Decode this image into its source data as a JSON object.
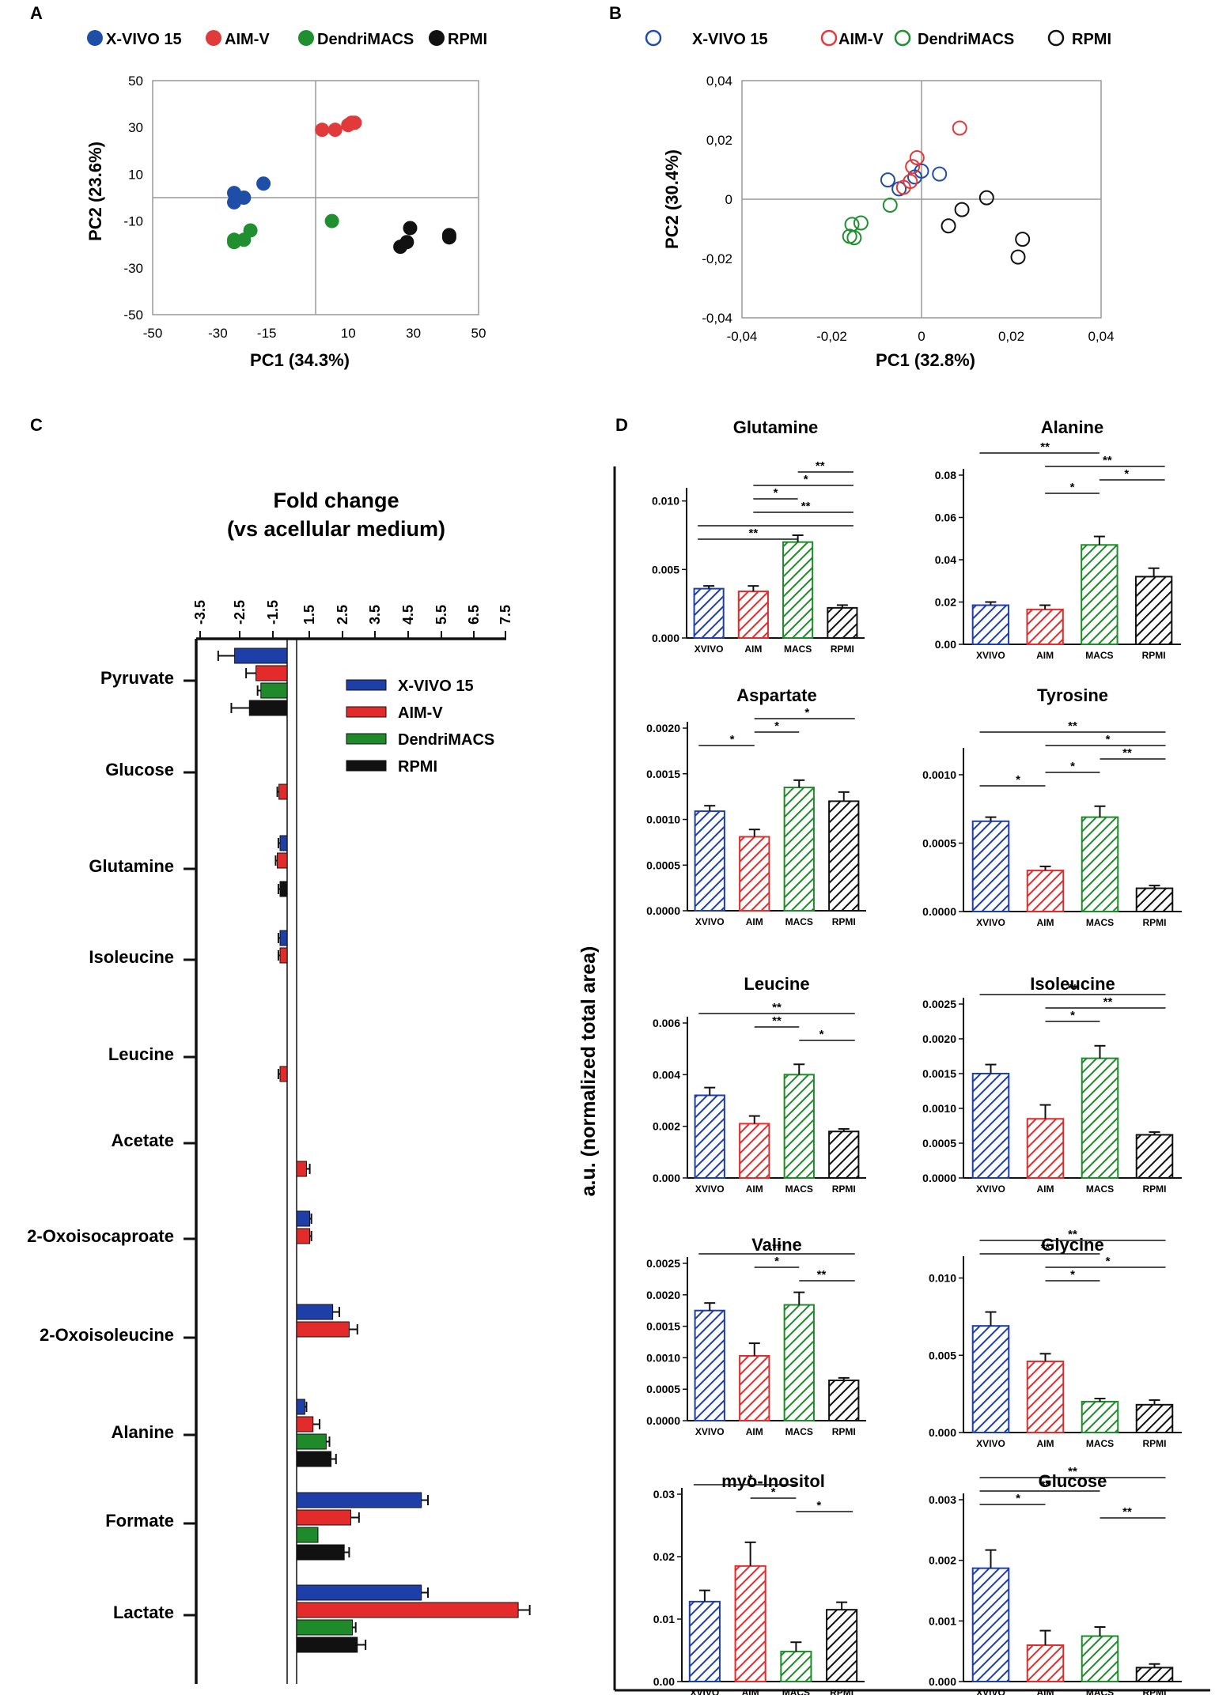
{
  "colors": {
    "xvivo": "#1f3fa8",
    "aim": "#e32b2b",
    "macs": "#1e8a2a",
    "rpmi": "#111111",
    "pca_xvivo": "#1f4ea8",
    "pca_aim": "#e03a3a",
    "pca_macs": "#1f8f2f"
  },
  "panels": {
    "a": "A",
    "b": "B",
    "c": "C",
    "d": "D"
  },
  "chart_data": [
    {
      "panel": "A",
      "type": "scatter",
      "legend": [
        "X-VIVO 15",
        "AIM-V",
        "DendriMACS",
        "RPMI"
      ],
      "xlabel": "PC1 (34.3%)",
      "ylabel": "PC2 (23.6%)",
      "xlim": [
        -50,
        50
      ],
      "ylim": [
        -50,
        50
      ],
      "xticks": [
        -50,
        -30,
        -15,
        10,
        30,
        50
      ],
      "xtick_labels": [
        "-50",
        "-30",
        "-15",
        "10",
        "30",
        "50"
      ],
      "yticks": [
        50,
        30,
        10,
        -10,
        -30,
        -50
      ],
      "ytick_labels": [
        "50",
        "30",
        "10",
        "-10",
        "-30",
        "-50"
      ],
      "series": [
        {
          "name": "X-VIVO 15",
          "points": [
            [
              -24,
              0
            ],
            [
              -25,
              -2
            ],
            [
              -22,
              0
            ],
            [
              -25,
              2
            ],
            [
              -16,
              6
            ]
          ]
        },
        {
          "name": "AIM-V",
          "points": [
            [
              2,
              29
            ],
            [
              6,
              29
            ],
            [
              10,
              31
            ],
            [
              11,
              32
            ],
            [
              12,
              32
            ]
          ]
        },
        {
          "name": "DendriMACS",
          "points": [
            [
              -25,
              -18
            ],
            [
              -25,
              -19
            ],
            [
              -22,
              -18
            ],
            [
              -20,
              -14
            ],
            [
              5,
              -10
            ]
          ]
        },
        {
          "name": "RPMI",
          "points": [
            [
              26,
              -21
            ],
            [
              28,
              -19
            ],
            [
              29,
              -13
            ],
            [
              41,
              -16
            ],
            [
              41,
              -17
            ]
          ]
        }
      ]
    },
    {
      "panel": "B",
      "type": "scatter",
      "legend": [
        "X-VIVO 15",
        "AIM-V",
        "DendriMACS",
        "RPMI"
      ],
      "xlabel": "PC1 (32.8%)",
      "ylabel": "PC2 (30.4%)",
      "xlim": [
        -0.04,
        0.04
      ],
      "ylim": [
        -0.04,
        0.04
      ],
      "xtick_values": [
        -0.04,
        -0.02,
        0,
        0.02,
        0.04
      ],
      "xtick_labels": [
        "-0,04",
        "-0,02",
        "0",
        "0,02",
        "0,04"
      ],
      "ytick_values": [
        0.04,
        0.02,
        0,
        -0.02,
        -0.04
      ],
      "ytick_labels": [
        "0,04",
        "0,02",
        "0",
        "-0,02",
        "-0,04"
      ],
      "series": [
        {
          "name": "X-VIVO 15",
          "points": [
            [
              -0.0075,
              0.0065
            ],
            [
              -0.005,
              0.0035
            ],
            [
              -0.0015,
              0.0075
            ],
            [
              0.0,
              0.0095
            ],
            [
              0.004,
              0.0085
            ]
          ]
        },
        {
          "name": "AIM-V",
          "points": [
            [
              -0.004,
              0.004
            ],
            [
              -0.0025,
              0.006
            ],
            [
              -0.002,
              0.011
            ],
            [
              -0.001,
              0.014
            ],
            [
              0.0085,
              0.024
            ]
          ]
        },
        {
          "name": "DendriMACS",
          "points": [
            [
              -0.0155,
              -0.0085
            ],
            [
              -0.016,
              -0.0125
            ],
            [
              -0.015,
              -0.013
            ],
            [
              -0.0135,
              -0.008
            ],
            [
              -0.007,
              -0.002
            ]
          ]
        },
        {
          "name": "RPMI",
          "points": [
            [
              0.006,
              -0.009
            ],
            [
              0.009,
              -0.0035
            ],
            [
              0.0145,
              0.0005
            ],
            [
              0.0215,
              -0.0195
            ],
            [
              0.0225,
              -0.0135
            ]
          ]
        }
      ]
    },
    {
      "panel": "C",
      "type": "bar",
      "orientation": "horizontal",
      "title": "Fold change",
      "subtitle": "(vs acellular medium)",
      "tick_labels": [
        "-3.5",
        "-2.5",
        "-1.5",
        "1.5",
        "2.5",
        "3.5",
        "4.5",
        "5.5",
        "6.5",
        "7.5"
      ],
      "legend": [
        "X-VIVO 15",
        "AIM-V",
        "DendriMACS",
        "RPMI"
      ],
      "categories": [
        "Pyruvate",
        "Glucose",
        "Glutamine",
        "Isoleucine",
        "Leucine",
        "Acetate",
        "2-Oxoisocaproate",
        "2-Oxoisoleucine",
        "Alanine",
        "Formate",
        "Lactate"
      ],
      "series": [
        {
          "name": "X-VIVO 15",
          "values": [
            -2.6,
            null,
            -1.2,
            -1.2,
            null,
            null,
            1.4,
            2.1,
            1.25,
            4.8,
            4.8
          ],
          "errors": [
            0.5,
            null,
            0.05,
            0.05,
            null,
            null,
            0.05,
            0.2,
            0.05,
            0.2,
            0.2
          ]
        },
        {
          "name": "AIM-V",
          "values": [
            -1.95,
            -1.25,
            -1.3,
            -1.2,
            -1.2,
            1.3,
            1.4,
            2.6,
            1.5,
            2.65,
            7.75
          ],
          "errors": [
            0.3,
            0.05,
            0.05,
            0.05,
            0.05,
            0.1,
            0.05,
            0.25,
            0.2,
            0.25,
            0.35
          ]
        },
        {
          "name": "DendriMACS",
          "values": [
            -1.8,
            null,
            null,
            null,
            null,
            null,
            null,
            null,
            1.9,
            1.65,
            2.7
          ],
          "errors": [
            0.1,
            null,
            null,
            null,
            null,
            null,
            null,
            null,
            0.1,
            null,
            0.1
          ]
        },
        {
          "name": "RPMI",
          "values": [
            -2.15,
            null,
            -1.2,
            null,
            null,
            null,
            null,
            null,
            2.05,
            2.45,
            2.85
          ],
          "errors": [
            0.55,
            null,
            0.05,
            null,
            null,
            null,
            null,
            null,
            0.15,
            0.15,
            0.25
          ]
        }
      ]
    },
    {
      "panel": "D",
      "type": "bar",
      "ylabel": "a.u. (normalized total area)",
      "categories": [
        "XVIVO",
        "AIM",
        "MACS",
        "RPMI"
      ],
      "subplots": [
        {
          "title": "Glutamine",
          "ymax": 0.0105,
          "ticks": [
            0.0,
            0.005,
            0.01
          ],
          "tick_labels": [
            "0.000",
            "0.005",
            "0.010"
          ],
          "values": [
            0.0036,
            0.0034,
            0.007,
            0.0022
          ],
          "errors": [
            0.0002,
            0.0004,
            0.0005,
            0.0002
          ],
          "sig": [
            {
              "a": 2,
              "b": 3,
              "label": "**"
            },
            {
              "a": 1,
              "b": 3,
              "label": "*"
            },
            {
              "a": 1,
              "b": 2,
              "label": "*"
            },
            {
              "a": 1,
              "b": 3,
              "label": "**"
            },
            {
              "a": 0,
              "b": 3,
              "label": ""
            },
            {
              "a": 0,
              "b": 2,
              "label": "**"
            }
          ]
        },
        {
          "title": "Alanine",
          "ymax": 0.08,
          "ticks": [
            0.0,
            0.02,
            0.04,
            0.06,
            0.08
          ],
          "tick_labels": [
            "0.00",
            "0.02",
            "0.04",
            "0.06",
            "0.08"
          ],
          "values": [
            0.0185,
            0.0165,
            0.047,
            0.032
          ],
          "errors": [
            0.0015,
            0.002,
            0.004,
            0.004
          ],
          "sig": [
            {
              "a": 0,
              "b": 2,
              "label": "**"
            },
            {
              "a": 1,
              "b": 3,
              "label": "**"
            },
            {
              "a": 2,
              "b": 3,
              "label": "*"
            },
            {
              "a": 1,
              "b": 2,
              "label": "*"
            }
          ]
        },
        {
          "title": "Aspartate",
          "ymax": 0.002,
          "ticks": [
            0.0,
            0.0005,
            0.001,
            0.0015,
            0.002
          ],
          "tick_labels": [
            "0.0000",
            "0.0005",
            "0.0010",
            "0.0015",
            "0.0020"
          ],
          "values": [
            0.00109,
            0.00081,
            0.00135,
            0.0012
          ],
          "errors": [
            6e-05,
            8e-05,
            8e-05,
            0.0001
          ],
          "sig": [
            {
              "a": 1,
              "b": 3,
              "label": "*"
            },
            {
              "a": 1,
              "b": 2,
              "label": "*"
            },
            {
              "a": 0,
              "b": 1,
              "label": "*"
            }
          ]
        },
        {
          "title": "Tyrosine",
          "ymax": 0.00115,
          "ticks": [
            0.0,
            0.0005,
            0.001
          ],
          "tick_labels": [
            "0.0000",
            "0.0005",
            "0.0010"
          ],
          "values": [
            0.00066,
            0.0003,
            0.00069,
            0.00017
          ],
          "errors": [
            3e-05,
            3e-05,
            8e-05,
            2e-05
          ],
          "sig": [
            {
              "a": 0,
              "b": 3,
              "label": "**"
            },
            {
              "a": 1,
              "b": 3,
              "label": "*"
            },
            {
              "a": 2,
              "b": 3,
              "label": "**"
            },
            {
              "a": 1,
              "b": 2,
              "label": "*"
            },
            {
              "a": 0,
              "b": 1,
              "label": "*"
            }
          ]
        },
        {
          "title": "Leucine",
          "ymax": 0.006,
          "ticks": [
            0.0,
            0.002,
            0.004,
            0.006
          ],
          "tick_labels": [
            "0.000",
            "0.002",
            "0.004",
            "0.006"
          ],
          "values": [
            0.0032,
            0.0021,
            0.004,
            0.0018
          ],
          "errors": [
            0.0003,
            0.0003,
            0.0004,
            0.0001
          ],
          "sig": [
            {
              "a": 0,
              "b": 3,
              "label": "**"
            },
            {
              "a": 1,
              "b": 2,
              "label": "**"
            },
            {
              "a": 2,
              "b": 3,
              "label": "*"
            }
          ]
        },
        {
          "title": "Isoleucine",
          "ymax": 0.0025,
          "ticks": [
            0.0,
            0.0005,
            0.001,
            0.0015,
            0.002,
            0.0025
          ],
          "tick_labels": [
            "0.0000",
            "0.0005",
            "0.0010",
            "0.0015",
            "0.0020",
            "0.0025"
          ],
          "values": [
            0.0015,
            0.00085,
            0.00172,
            0.00062
          ],
          "errors": [
            0.00013,
            0.0002,
            0.00018,
            4e-05
          ],
          "sig": [
            {
              "a": 0,
              "b": 3,
              "label": "**"
            },
            {
              "a": 1,
              "b": 3,
              "label": "**"
            },
            {
              "a": 1,
              "b": 2,
              "label": "*"
            }
          ]
        },
        {
          "title": "Valine",
          "ymax": 0.0025,
          "ticks": [
            0.0,
            0.0005,
            0.001,
            0.0015,
            0.002,
            0.0025
          ],
          "tick_labels": [
            "0.0000",
            "0.0005",
            "0.0010",
            "0.0015",
            "0.0020",
            "0.0025"
          ],
          "values": [
            0.00175,
            0.00103,
            0.00184,
            0.00064
          ],
          "errors": [
            0.00012,
            0.0002,
            0.0002,
            4e-05
          ],
          "sig": [
            {
              "a": 0,
              "b": 3,
              "label": "**"
            },
            {
              "a": 1,
              "b": 2,
              "label": "*"
            },
            {
              "a": 2,
              "b": 3,
              "label": "**"
            }
          ]
        },
        {
          "title": "Glycine",
          "ymax": 0.011,
          "ticks": [
            0.0,
            0.005,
            0.01
          ],
          "tick_labels": [
            "0.000",
            "0.005",
            "0.010"
          ],
          "values": [
            0.0069,
            0.0046,
            0.002,
            0.0018
          ],
          "errors": [
            0.0009,
            0.0005,
            0.0002,
            0.0003
          ],
          "sig": [
            {
              "a": 0,
              "b": 3,
              "label": "**"
            },
            {
              "a": 0,
              "b": 2,
              "label": "**"
            },
            {
              "a": 1,
              "b": 3,
              "label": "*"
            },
            {
              "a": 1,
              "b": 2,
              "label": "*"
            }
          ]
        },
        {
          "title": "myo-Inositol",
          "ymax": 0.03,
          "ticks": [
            0.0,
            0.01,
            0.02,
            0.03
          ],
          "tick_labels": [
            "0.00",
            "0.01",
            "0.02",
            "0.03"
          ],
          "values": [
            0.0128,
            0.0185,
            0.0048,
            0.0115
          ],
          "errors": [
            0.0018,
            0.0038,
            0.0015,
            0.0012
          ],
          "sig": [
            {
              "a": 0,
              "b": 2,
              "label": "*"
            },
            {
              "a": 1,
              "b": 2,
              "label": "*"
            },
            {
              "a": 2,
              "b": 3,
              "label": "*"
            }
          ]
        },
        {
          "title": "Glucose",
          "ymax": 0.003,
          "ticks": [
            0.0,
            0.001,
            0.002,
            0.003
          ],
          "tick_labels": [
            "0.000",
            "0.001",
            "0.002",
            "0.003"
          ],
          "values": [
            0.00187,
            0.0006,
            0.00075,
            0.00023
          ],
          "errors": [
            0.0003,
            0.00024,
            0.00015,
            6e-05
          ],
          "sig": [
            {
              "a": 0,
              "b": 3,
              "label": "**"
            },
            {
              "a": 0,
              "b": 2,
              "label": "**"
            },
            {
              "a": 0,
              "b": 1,
              "label": "*"
            },
            {
              "a": 2,
              "b": 3,
              "label": "**"
            }
          ]
        }
      ]
    }
  ]
}
